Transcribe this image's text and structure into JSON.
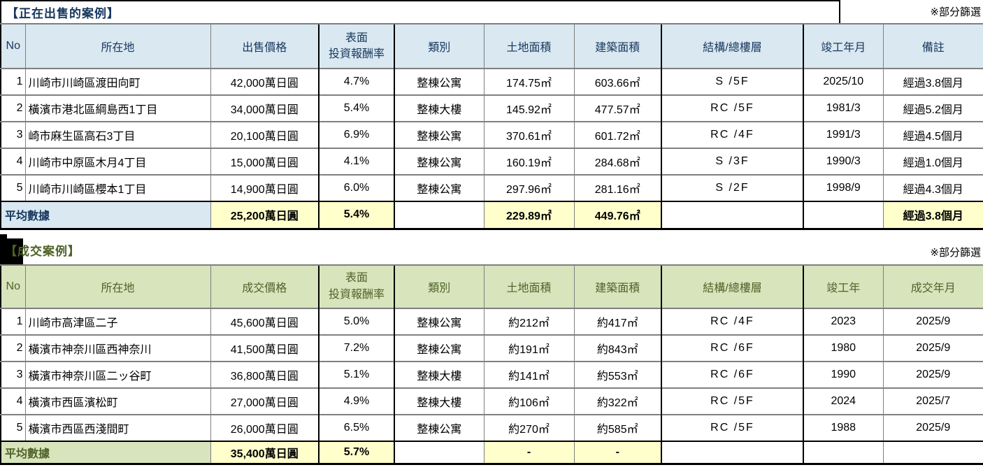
{
  "colors": {
    "t1_accent": "#17375d",
    "t1_header_bg": "#d9e8f1",
    "t2_accent": "#4f6228",
    "t2_header_bg": "#d7e4bc",
    "highlight_bg": "#ffffcc",
    "grid_line": "#7f7f7f",
    "frame": "#000000"
  },
  "table1": {
    "title": "【正在出售的案例】",
    "note": "※部分篩選",
    "headers": {
      "no": "No",
      "location": "所在地",
      "price": "出售價格",
      "yield_line1": "表面",
      "yield_line2": "投資報酬率",
      "category": "類別",
      "land": "土地面積",
      "building": "建築面積",
      "structure": "結構/總樓層",
      "built": "竣工年月",
      "remark": "備註"
    },
    "rows": [
      {
        "no": "1",
        "location": "川崎市川崎區渡田向町",
        "price": "42,000萬日圓",
        "yield": "4.7%",
        "category": "整棟公寓",
        "land": "174.75㎡",
        "building": "603.66㎡",
        "structure": "S /5F",
        "built": "2025/10",
        "remark": "經過3.8個月"
      },
      {
        "no": "2",
        "location": "橫濱市港北區綱島西1丁目",
        "price": "34,000萬日圓",
        "yield": "5.4%",
        "category": "整棟大樓",
        "land": "145.92㎡",
        "building": "477.57㎡",
        "structure": "RC /5F",
        "built": "1981/3",
        "remark": "經過5.2個月"
      },
      {
        "no": "3",
        "location": "崎市麻生區高石3丁目",
        "price": "20,100萬日圓",
        "yield": "6.9%",
        "category": "整棟公寓",
        "land": "370.61㎡",
        "building": "601.72㎡",
        "structure": "RC /4F",
        "built": "1991/3",
        "remark": "經過4.5個月"
      },
      {
        "no": "4",
        "location": "川崎市中原區木月4丁目",
        "price": "15,000萬日圓",
        "yield": "4.1%",
        "category": "整棟公寓",
        "land": "160.19㎡",
        "building": "284.68㎡",
        "structure": "S /3F",
        "built": "1990/3",
        "remark": "經過1.0個月"
      },
      {
        "no": "5",
        "location": "川崎市川崎區櫻本1丁目",
        "price": "14,900萬日圓",
        "yield": "6.0%",
        "category": "整棟公寓",
        "land": "297.96㎡",
        "building": "281.16㎡",
        "structure": "S /2F",
        "built": "1998/9",
        "remark": "經過4.3個月"
      }
    ],
    "average": {
      "label": "平均數據",
      "price": "25,200萬日圓",
      "yield": "5.4%",
      "category": "",
      "land": "229.89㎡",
      "building": "449.76㎡",
      "structure": "",
      "built": "",
      "remark": "經過3.8個月"
    }
  },
  "table2": {
    "title": "【成交案例】",
    "note": "※部分篩選",
    "headers": {
      "no": "No",
      "location": "所在地",
      "price": "成交價格",
      "yield_line1": "表面",
      "yield_line2": "投資報酬率",
      "category": "類別",
      "land": "土地面積",
      "building": "建築面積",
      "structure": "結構/總樓層",
      "built": "竣工年",
      "closed": "成交年月"
    },
    "rows": [
      {
        "no": "1",
        "location": "川崎市高津區二子",
        "price": "45,600萬日圓",
        "yield": "5.0%",
        "category": "整棟公寓",
        "land": "約212㎡",
        "building": "約417㎡",
        "structure": "RC /4F",
        "built": "2023",
        "closed": "2025/9"
      },
      {
        "no": "2",
        "location": "橫濱市神奈川區西神奈川",
        "price": "41,500萬日圓",
        "yield": "7.2%",
        "category": "整棟公寓",
        "land": "約191㎡",
        "building": "約843㎡",
        "structure": "RC /6F",
        "built": "1980",
        "closed": "2025/9"
      },
      {
        "no": "3",
        "location": "橫濱市神奈川區二ッ谷町",
        "price": "36,800萬日圓",
        "yield": "5.1%",
        "category": "整棟大樓",
        "land": "約141㎡",
        "building": "約553㎡",
        "structure": "RC /6F",
        "built": "1990",
        "closed": "2025/9"
      },
      {
        "no": "4",
        "location": "橫濱市西區濱松町",
        "price": "27,000萬日圓",
        "yield": "4.9%",
        "category": "整棟大樓",
        "land": "約106㎡",
        "building": "約322㎡",
        "structure": "RC /5F",
        "built": "2024",
        "closed": "2025/7"
      },
      {
        "no": "5",
        "location": "橫濱市西區西淺間町",
        "price": "26,000萬日圓",
        "yield": "6.5%",
        "category": "整棟公寓",
        "land": "約270㎡",
        "building": "約585㎡",
        "structure": "RC /5F",
        "built": "1988",
        "closed": "2025/9"
      }
    ],
    "average": {
      "label": "平均數據",
      "price": "35,400萬日圓",
      "yield": "5.7%",
      "category": "",
      "land": "-",
      "building": "-",
      "structure": "",
      "built": "",
      "closed": ""
    }
  }
}
